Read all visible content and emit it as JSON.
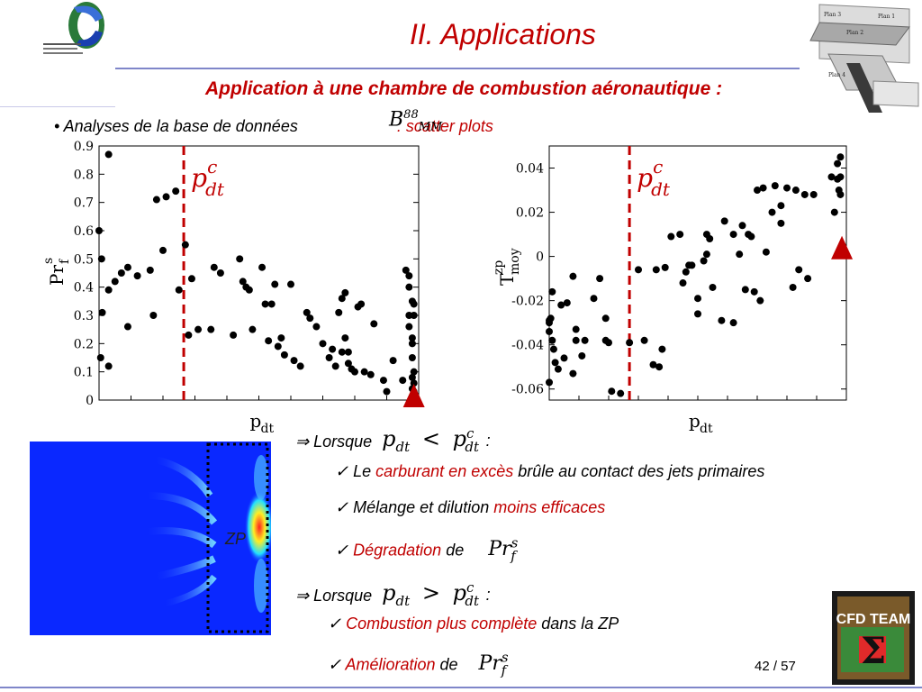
{
  "slide": {
    "title": "II.  Applications",
    "subtitle": "Application à une chambre de combustion aéronautique :",
    "bullet_prefix": "• Analyses de la base de données",
    "bullet_suffix": ": scatter plots",
    "bmm": {
      "base": "B",
      "sup": "88",
      "sub": "MM"
    },
    "page": "42 / 57",
    "zp_label": "ZP",
    "cond1": {
      "lead": "⇒ Lorsque",
      "colon": ":"
    },
    "cond2": {
      "lead": "⇒ Lorsque",
      "colon": ":"
    },
    "items1": [
      {
        "check": "✓",
        "parts": [
          "Le ",
          "carburant en excès",
          " brûle au contact des jets primaires"
        ]
      },
      {
        "check": "✓",
        "parts": [
          "Mélange et dilution ",
          "moins efficaces",
          ""
        ]
      },
      {
        "check": "✓",
        "parts": [
          "",
          "Dégradation",
          " de"
        ]
      }
    ],
    "items2": [
      {
        "check": "✓",
        "parts": [
          "",
          "Combustion plus complète",
          " dans la ZP"
        ]
      },
      {
        "check": "✓",
        "parts": [
          "",
          "Amélioration",
          " de"
        ]
      }
    ],
    "math": {
      "p": "p",
      "dt": "dt",
      "c": "c",
      "lt": "<",
      "gt": ">",
      "Pr": "Pr",
      "s": "s",
      "f": "f"
    },
    "logo_text": "CFD TEAM",
    "colors": {
      "accent": "#c00000",
      "rule": "#7f86c9",
      "marker": "#c00000"
    }
  },
  "chart_data": [
    {
      "type": "scatter",
      "xlabel": "p_dt",
      "ylabel": "Pr_f^s",
      "xlabel_main": "p",
      "xlabel_sub": "dt",
      "ylabel_main": "Pr",
      "ylabel_sub": "f",
      "ylabel_sup": "s",
      "ylim": [
        0,
        0.9
      ],
      "yticks": [
        "0",
        "0.1",
        "0.2",
        "0.3",
        "0.4",
        "0.5",
        "0.6",
        "0.7",
        "0.8",
        "0.9"
      ],
      "xlim": [
        0,
        1
      ],
      "threshold_x": 0.265,
      "threshold_label": {
        "main": "p",
        "sup": "c",
        "sub": "dt"
      },
      "marker_point": {
        "x": 0.985,
        "y": 0.0
      },
      "points": [
        [
          0.0,
          0.6
        ],
        [
          0.005,
          0.15
        ],
        [
          0.008,
          0.5
        ],
        [
          0.01,
          0.31
        ],
        [
          0.03,
          0.87
        ],
        [
          0.03,
          0.12
        ],
        [
          0.03,
          0.39
        ],
        [
          0.05,
          0.42
        ],
        [
          0.07,
          0.45
        ],
        [
          0.09,
          0.26
        ],
        [
          0.09,
          0.47
        ],
        [
          0.12,
          0.44
        ],
        [
          0.16,
          0.46
        ],
        [
          0.17,
          0.3
        ],
        [
          0.18,
          0.71
        ],
        [
          0.21,
          0.72
        ],
        [
          0.24,
          0.74
        ],
        [
          0.2,
          0.53
        ],
        [
          0.25,
          0.39
        ],
        [
          0.27,
          0.55
        ],
        [
          0.28,
          0.23
        ],
        [
          0.29,
          0.43
        ],
        [
          0.31,
          0.25
        ],
        [
          0.35,
          0.25
        ],
        [
          0.36,
          0.47
        ],
        [
          0.38,
          0.45
        ],
        [
          0.42,
          0.23
        ],
        [
          0.44,
          0.5
        ],
        [
          0.45,
          0.42
        ],
        [
          0.46,
          0.4
        ],
        [
          0.47,
          0.39
        ],
        [
          0.48,
          0.25
        ],
        [
          0.51,
          0.47
        ],
        [
          0.52,
          0.34
        ],
        [
          0.53,
          0.21
        ],
        [
          0.54,
          0.34
        ],
        [
          0.55,
          0.41
        ],
        [
          0.56,
          0.19
        ],
        [
          0.57,
          0.22
        ],
        [
          0.58,
          0.16
        ],
        [
          0.6,
          0.41
        ],
        [
          0.61,
          0.14
        ],
        [
          0.63,
          0.12
        ],
        [
          0.65,
          0.31
        ],
        [
          0.66,
          0.29
        ],
        [
          0.68,
          0.26
        ],
        [
          0.7,
          0.2
        ],
        [
          0.72,
          0.15
        ],
        [
          0.73,
          0.18
        ],
        [
          0.74,
          0.12
        ],
        [
          0.75,
          0.31
        ],
        [
          0.76,
          0.17
        ],
        [
          0.76,
          0.36
        ],
        [
          0.77,
          0.22
        ],
        [
          0.77,
          0.38
        ],
        [
          0.78,
          0.13
        ],
        [
          0.78,
          0.17
        ],
        [
          0.79,
          0.11
        ],
        [
          0.8,
          0.1
        ],
        [
          0.81,
          0.33
        ],
        [
          0.82,
          0.34
        ],
        [
          0.83,
          0.1
        ],
        [
          0.85,
          0.09
        ],
        [
          0.86,
          0.27
        ],
        [
          0.89,
          0.07
        ],
        [
          0.9,
          0.03
        ],
        [
          0.92,
          0.14
        ],
        [
          0.95,
          0.07
        ],
        [
          0.96,
          0.46
        ],
        [
          0.97,
          0.3
        ],
        [
          0.97,
          0.26
        ],
        [
          0.98,
          0.35
        ],
        [
          0.98,
          0.22
        ],
        [
          0.98,
          0.15
        ],
        [
          0.985,
          0.34
        ],
        [
          0.985,
          0.3
        ],
        [
          0.985,
          0.1
        ],
        [
          0.985,
          0.06
        ],
        [
          0.985,
          0.03
        ],
        [
          0.985,
          0.0
        ],
        [
          0.98,
          0.2
        ],
        [
          0.97,
          0.4
        ],
        [
          0.97,
          0.44
        ],
        [
          0.98,
          0.08
        ],
        [
          0.98,
          0.04
        ]
      ]
    },
    {
      "type": "scatter",
      "xlabel": "p_dt",
      "ylabel": "T_moy^zp",
      "xlabel_main": "p",
      "xlabel_sub": "dt",
      "ylabel_main": "T",
      "ylabel_sub": "moy",
      "ylabel_sup": "zp",
      "ylim": [
        -0.065,
        0.05
      ],
      "yticks": [
        "-0.06",
        "-0.04",
        "-0.02",
        "0",
        "0.02",
        "0.04"
      ],
      "ytick_values": [
        -0.06,
        -0.04,
        -0.02,
        0,
        0.02,
        0.04
      ],
      "xlim": [
        0,
        1
      ],
      "threshold_x": 0.27,
      "threshold_label": {
        "main": "p",
        "sup": "c",
        "sub": "dt"
      },
      "marker_point": {
        "x": 0.985,
        "y": 0.002
      },
      "points": [
        [
          0.0,
          -0.03
        ],
        [
          0.0,
          -0.034
        ],
        [
          0.0,
          -0.029
        ],
        [
          0.0,
          -0.057
        ],
        [
          0.005,
          -0.028
        ],
        [
          0.01,
          -0.016
        ],
        [
          0.01,
          -0.038
        ],
        [
          0.015,
          -0.042
        ],
        [
          0.02,
          -0.048
        ],
        [
          0.03,
          -0.051
        ],
        [
          0.04,
          -0.022
        ],
        [
          0.05,
          -0.046
        ],
        [
          0.06,
          -0.021
        ],
        [
          0.08,
          -0.009
        ],
        [
          0.08,
          -0.053
        ],
        [
          0.09,
          -0.033
        ],
        [
          0.09,
          -0.038
        ],
        [
          0.11,
          -0.045
        ],
        [
          0.12,
          -0.038
        ],
        [
          0.15,
          -0.019
        ],
        [
          0.17,
          -0.01
        ],
        [
          0.19,
          -0.028
        ],
        [
          0.19,
          -0.038
        ],
        [
          0.2,
          -0.039
        ],
        [
          0.21,
          -0.061
        ],
        [
          0.24,
          -0.062
        ],
        [
          0.27,
          -0.039
        ],
        [
          0.3,
          -0.006
        ],
        [
          0.32,
          -0.038
        ],
        [
          0.35,
          -0.049
        ],
        [
          0.36,
          -0.006
        ],
        [
          0.37,
          -0.05
        ],
        [
          0.38,
          -0.042
        ],
        [
          0.39,
          -0.005
        ],
        [
          0.41,
          0.009
        ],
        [
          0.44,
          0.01
        ],
        [
          0.45,
          -0.012
        ],
        [
          0.46,
          -0.007
        ],
        [
          0.47,
          -0.004
        ],
        [
          0.48,
          -0.004
        ],
        [
          0.5,
          -0.019
        ],
        [
          0.5,
          -0.026
        ],
        [
          0.52,
          -0.002
        ],
        [
          0.53,
          0.001
        ],
        [
          0.53,
          0.01
        ],
        [
          0.54,
          0.008
        ],
        [
          0.55,
          -0.014
        ],
        [
          0.58,
          -0.029
        ],
        [
          0.59,
          0.016
        ],
        [
          0.62,
          0.01
        ],
        [
          0.62,
          -0.03
        ],
        [
          0.64,
          0.001
        ],
        [
          0.65,
          0.014
        ],
        [
          0.66,
          -0.015
        ],
        [
          0.67,
          0.01
        ],
        [
          0.68,
          0.009
        ],
        [
          0.69,
          -0.016
        ],
        [
          0.7,
          0.03
        ],
        [
          0.71,
          -0.02
        ],
        [
          0.72,
          0.031
        ],
        [
          0.73,
          0.002
        ],
        [
          0.75,
          0.02
        ],
        [
          0.76,
          0.032
        ],
        [
          0.78,
          0.015
        ],
        [
          0.78,
          0.023
        ],
        [
          0.8,
          0.031
        ],
        [
          0.82,
          -0.014
        ],
        [
          0.83,
          0.03
        ],
        [
          0.84,
          -0.006
        ],
        [
          0.86,
          0.028
        ],
        [
          0.87,
          -0.01
        ],
        [
          0.89,
          0.028
        ],
        [
          0.95,
          0.036
        ],
        [
          0.96,
          0.02
        ],
        [
          0.97,
          0.042
        ],
        [
          0.98,
          0.045
        ],
        [
          0.98,
          0.036
        ],
        [
          0.985,
          0.004
        ],
        [
          0.975,
          0.03
        ],
        [
          0.97,
          0.035
        ],
        [
          0.98,
          0.028
        ]
      ]
    }
  ]
}
